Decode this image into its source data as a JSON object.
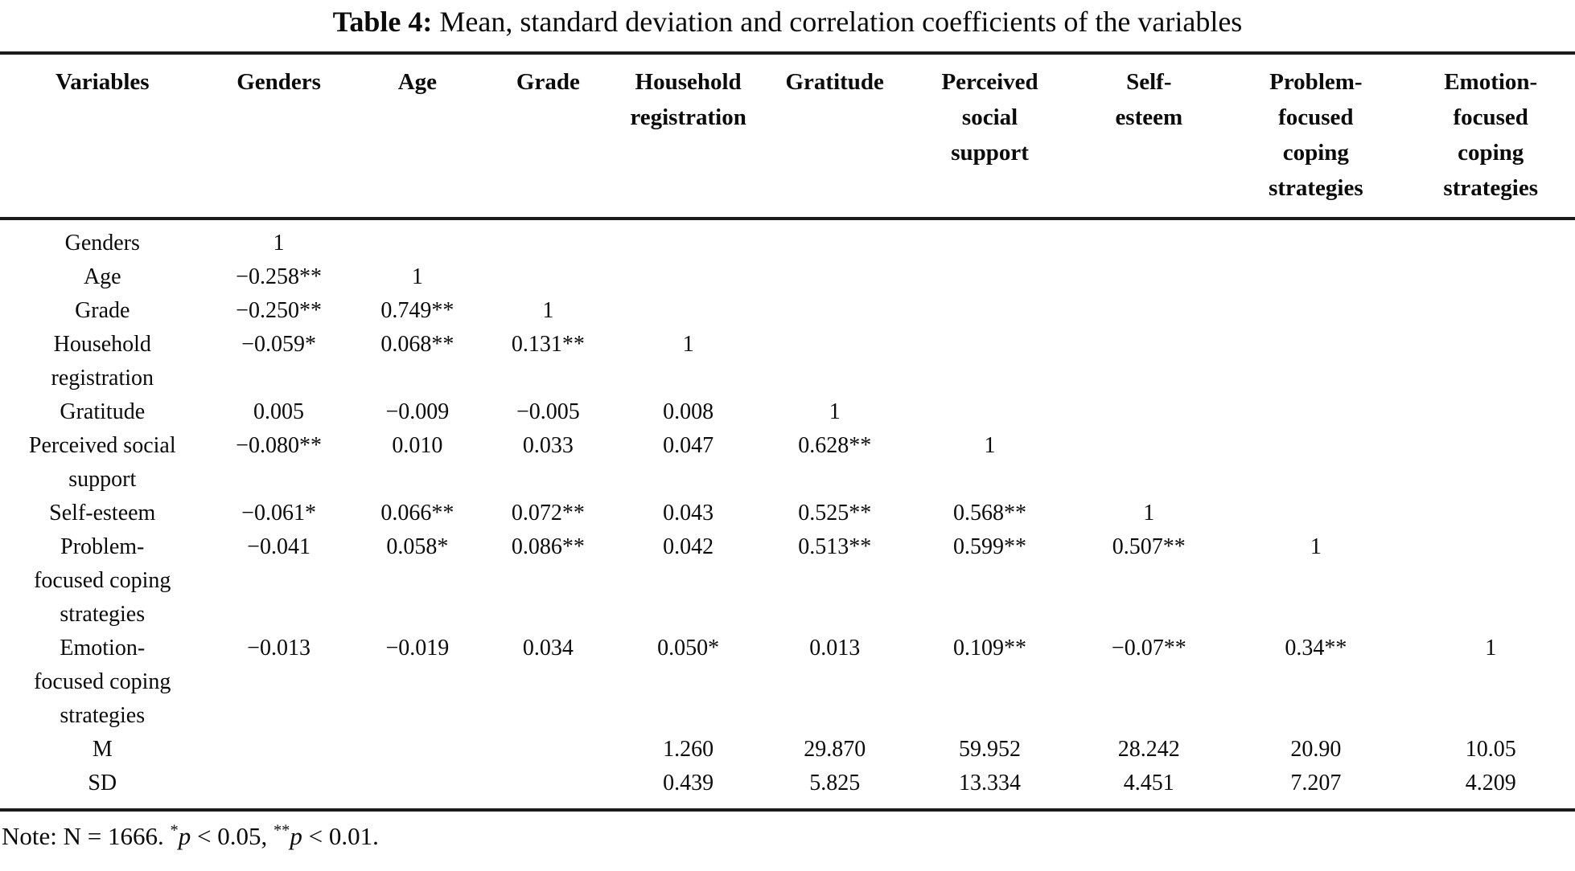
{
  "title": {
    "label": "Table 4:",
    "text": "Mean, standard deviation and correlation coefficients of the variables"
  },
  "table": {
    "columns": [
      "Variables",
      "Genders",
      "Age",
      "Grade",
      "Household\nregistration",
      "Gratitude",
      "Perceived\nsocial\nsupport",
      "Self-\nesteem",
      "Problem-\nfocused\ncoping\nstrategies",
      "Emotion-\nfocused\ncoping\nstrategies"
    ],
    "rows": [
      {
        "label": "Genders",
        "cells": [
          "1",
          "",
          "",
          "",
          "",
          "",
          "",
          "",
          ""
        ]
      },
      {
        "label": "Age",
        "cells": [
          "−0.258**",
          "1",
          "",
          "",
          "",
          "",
          "",
          "",
          ""
        ]
      },
      {
        "label": "Grade",
        "cells": [
          "−0.250**",
          "0.749**",
          "1",
          "",
          "",
          "",
          "",
          "",
          ""
        ]
      },
      {
        "label": "Household\nregistration",
        "cells": [
          "−0.059*",
          "0.068**",
          "0.131**",
          "1",
          "",
          "",
          "",
          "",
          ""
        ]
      },
      {
        "label": "Gratitude",
        "cells": [
          "0.005",
          "−0.009",
          "−0.005",
          "0.008",
          "1",
          "",
          "",
          "",
          ""
        ]
      },
      {
        "label": "Perceived social\nsupport",
        "cells": [
          "−0.080**",
          "0.010",
          "0.033",
          "0.047",
          "0.628**",
          "1",
          "",
          "",
          ""
        ]
      },
      {
        "label": "Self-esteem",
        "cells": [
          "−0.061*",
          "0.066**",
          "0.072**",
          "0.043",
          "0.525**",
          "0.568**",
          "1",
          "",
          ""
        ]
      },
      {
        "label": "Problem-\nfocused coping\nstrategies",
        "cells": [
          "−0.041",
          "0.058*",
          "0.086**",
          "0.042",
          "0.513**",
          "0.599**",
          "0.507**",
          "1",
          ""
        ]
      },
      {
        "label": "Emotion-\nfocused coping\nstrategies",
        "cells": [
          "−0.013",
          "−0.019",
          "0.034",
          "0.050*",
          "0.013",
          "0.109**",
          "−0.07**",
          "0.34**",
          "1"
        ]
      },
      {
        "label": "M",
        "cells": [
          "",
          "",
          "",
          "1.260",
          "29.870",
          "59.952",
          "28.242",
          "20.90",
          "10.05"
        ]
      },
      {
        "label": "SD",
        "cells": [
          "",
          "",
          "",
          "0.439",
          "5.825",
          "13.334",
          "4.451",
          "7.207",
          "4.209"
        ]
      }
    ]
  },
  "note": {
    "prefix": "Note: N = 1666. ",
    "star1": "*",
    "p1": "p",
    "seg1": " < 0.05, ",
    "star2": "**",
    "p2": "p",
    "seg2": " < 0.01."
  }
}
